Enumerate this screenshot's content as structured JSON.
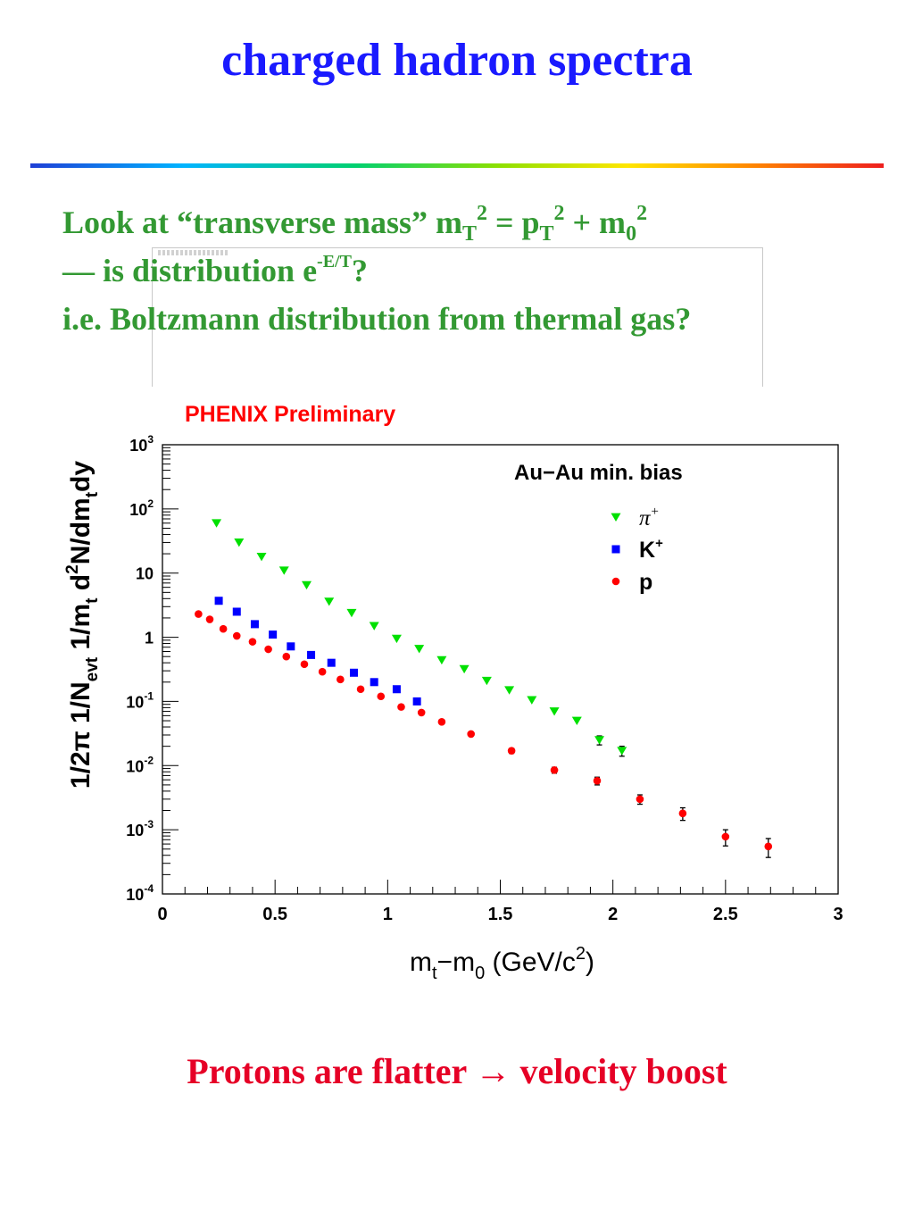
{
  "slide": {
    "title": "charged hadron spectra",
    "intro_line1_a": "Look at “transverse mass” m",
    "intro_line1_sub_T1": "T",
    "intro_line1_sup_2a": "2",
    "intro_line1_b": " =  p",
    "intro_line1_sub_T2": "T",
    "intro_line1_sup_2b": "2",
    "intro_line1_c": " + m",
    "intro_line1_sub_0": "0",
    "intro_line1_sup_2c": "2",
    "intro_line2_a": "— is distribution e",
    "intro_line2_sup": "-E/T",
    "intro_line2_b": "?",
    "intro_line3": "i.e. Boltzmann distribution from thermal gas?",
    "conclusion": "Protons are flatter → velocity boost"
  },
  "colors": {
    "title": "#1a1aff",
    "intro": "#339933",
    "conclusion": "#e60026",
    "pi_plus": "#00e000",
    "k_plus": "#0000ff",
    "proton": "#ff0000",
    "watermark": "#ff0000"
  },
  "chart_data": {
    "type": "scatter",
    "log_y": true,
    "title": "PHENIX Preliminary",
    "subtitle": "Au−Au min. bias",
    "xlabel": "mₜ−m₀ (GeV/c²)",
    "xlabel_parts": {
      "a": "m",
      "sub_t": "t",
      "b": "−m",
      "sub_0": "0",
      "c": " (GeV/c",
      "sup_2": "2",
      "d": ")"
    },
    "ylabel": "1/2π 1/Nₑᵥₜ 1/mₜ d²N/dmₜdy",
    "ylabel_parts": {
      "a": "1/2π 1/N",
      "sub_evt": "evt",
      "b": "  1/m",
      "sub_t1": "t",
      "c": " d",
      "sup_2": "2",
      "d": "N/dm",
      "sub_t2": "t",
      "e": "dy"
    },
    "xlim": [
      0,
      3
    ],
    "ylim": [
      0.0001,
      1000
    ],
    "x_ticks": [
      {
        "v": 0,
        "label": "0"
      },
      {
        "v": 0.5,
        "label": "0.5"
      },
      {
        "v": 1,
        "label": "1"
      },
      {
        "v": 1.5,
        "label": "1.5"
      },
      {
        "v": 2,
        "label": "2"
      },
      {
        "v": 2.5,
        "label": "2.5"
      },
      {
        "v": 3,
        "label": "3"
      }
    ],
    "y_ticks": [
      {
        "v": 1000,
        "base": "10",
        "exp": "3"
      },
      {
        "v": 100,
        "base": "10",
        "exp": "2"
      },
      {
        "v": 10,
        "base": "10",
        "exp": ""
      },
      {
        "v": 1,
        "base": "1",
        "exp": ""
      },
      {
        "v": 0.1,
        "base": "10",
        "exp": "-1"
      },
      {
        "v": 0.01,
        "base": "10",
        "exp": "-2"
      },
      {
        "v": 0.001,
        "base": "10",
        "exp": "-3"
      },
      {
        "v": 0.0001,
        "base": "10",
        "exp": "-4"
      }
    ],
    "legend_position": "top-right",
    "series": [
      {
        "name": "π⁺",
        "label_main": "π",
        "label_sup": "+",
        "marker": "triangle-down",
        "color": "#00e000",
        "x": [
          0.24,
          0.34,
          0.44,
          0.54,
          0.64,
          0.74,
          0.84,
          0.94,
          1.04,
          1.14,
          1.24,
          1.34,
          1.44,
          1.54,
          1.64,
          1.74,
          1.84,
          1.94,
          2.04
        ],
        "y": [
          60,
          30,
          18,
          11,
          6.5,
          3.6,
          2.4,
          1.5,
          0.95,
          0.66,
          0.44,
          0.32,
          0.21,
          0.15,
          0.105,
          0.07,
          0.05,
          0.025,
          0.017
        ],
        "err": [
          0,
          0,
          0,
          0,
          0,
          0,
          0,
          0,
          0,
          0,
          0,
          0,
          0,
          0,
          0,
          0,
          0,
          0.004,
          0.003
        ]
      },
      {
        "name": "K⁺",
        "label_main": "K",
        "label_sup": "+",
        "marker": "square",
        "color": "#0000ff",
        "x": [
          0.25,
          0.33,
          0.41,
          0.49,
          0.57,
          0.66,
          0.75,
          0.85,
          0.94,
          1.04,
          1.13
        ],
        "y": [
          3.7,
          2.5,
          1.6,
          1.1,
          0.72,
          0.53,
          0.4,
          0.28,
          0.2,
          0.155,
          0.1
        ],
        "err": [
          0,
          0,
          0,
          0,
          0,
          0,
          0,
          0,
          0,
          0,
          0
        ]
      },
      {
        "name": "p",
        "label_main": "p",
        "label_sup": "",
        "marker": "circle",
        "color": "#ff0000",
        "x": [
          0.16,
          0.21,
          0.27,
          0.33,
          0.4,
          0.47,
          0.55,
          0.63,
          0.71,
          0.79,
          0.88,
          0.97,
          1.06,
          1.15,
          1.24,
          1.37,
          1.55,
          1.74,
          1.93,
          2.12,
          2.31,
          2.5,
          2.69
        ],
        "y": [
          2.3,
          1.9,
          1.35,
          1.05,
          0.85,
          0.65,
          0.5,
          0.38,
          0.29,
          0.22,
          0.155,
          0.12,
          0.082,
          0.067,
          0.048,
          0.031,
          0.017,
          0.0085,
          0.0058,
          0.003,
          0.0018,
          0.00078,
          0.00055
        ],
        "err": [
          0,
          0,
          0,
          0,
          0,
          0,
          0,
          0,
          0,
          0,
          0,
          0,
          0,
          0,
          0,
          0,
          0.0015,
          0.0009,
          0.0008,
          0.0005,
          0.0004,
          0.00022,
          0.00018
        ]
      }
    ]
  }
}
